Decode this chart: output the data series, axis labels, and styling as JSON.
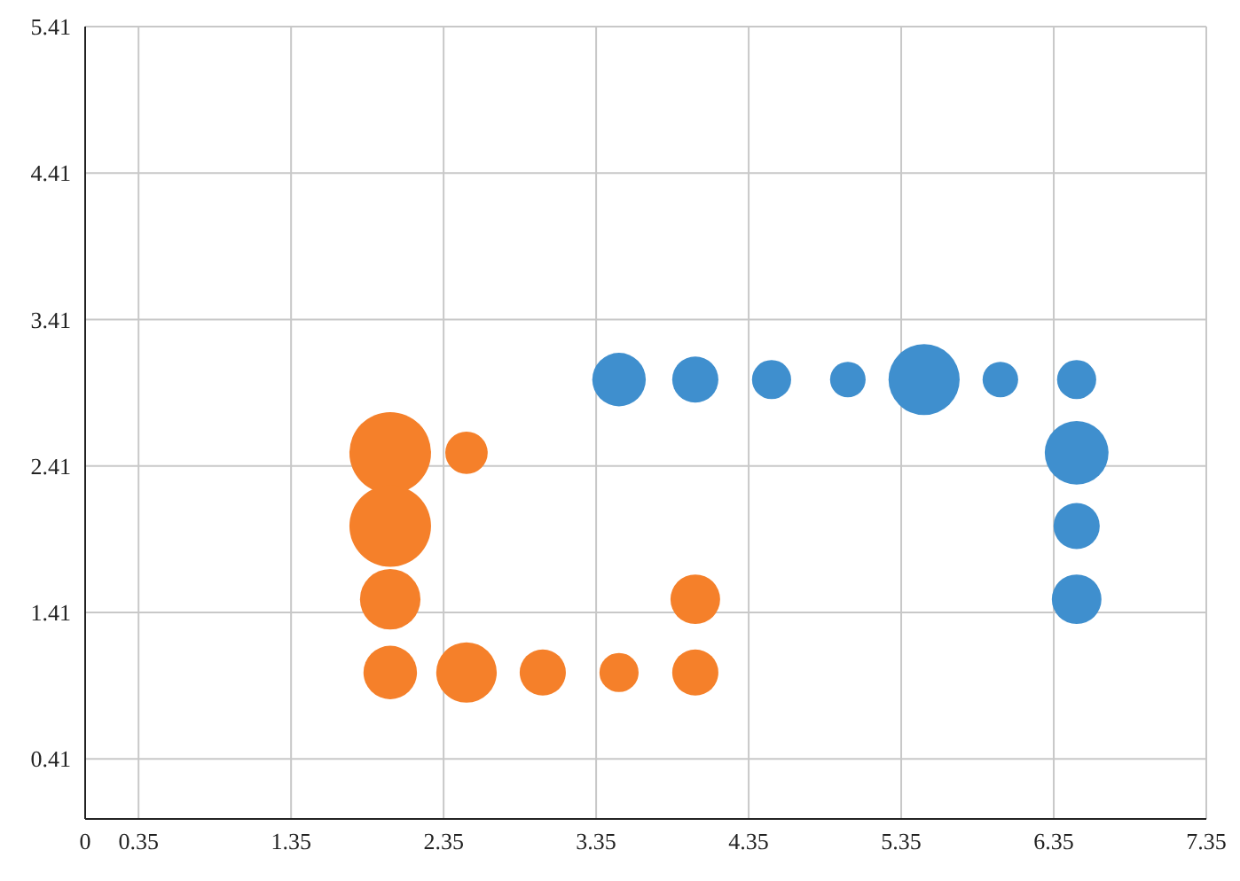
{
  "chart_data": {
    "type": "bubble",
    "xlim": [
      0,
      7.35
    ],
    "xticks": [
      0,
      0.35,
      1.35,
      2.35,
      3.35,
      4.35,
      5.35,
      6.35,
      7.35
    ],
    "ylim": [
      0,
      5.41
    ],
    "yticks": [
      0.41,
      1.41,
      2.41,
      3.41,
      4.41,
      5.41
    ],
    "grid": true,
    "series": [
      {
        "color": "#3f8fce",
        "x": [
          3.5,
          4,
          4.5,
          5,
          5.5,
          6,
          6.5,
          6.5,
          6.5,
          6.5
        ],
        "values": [
          3,
          3,
          3,
          3,
          3,
          3,
          3,
          2.5,
          2,
          1.5
        ],
        "sizes": [
          0.43,
          0.32,
          0.23,
          0.19,
          0.76,
          0.19,
          0.23,
          0.61,
          0.32,
          0.37
        ]
      },
      {
        "color": "#f5802a",
        "x": [
          2,
          2.5,
          2,
          2,
          2,
          2.5,
          3,
          3.5,
          4,
          4
        ],
        "values": [
          2.5,
          2.5,
          2,
          1.5,
          1,
          1,
          1,
          1,
          1,
          1.5
        ],
        "sizes": [
          1,
          0.27,
          1,
          0.55,
          0.43,
          0.55,
          0.32,
          0.23,
          0.32,
          0.37
        ]
      }
    ]
  }
}
